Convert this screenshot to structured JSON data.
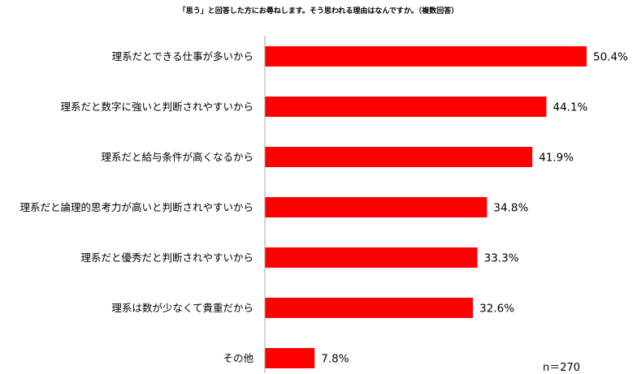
{
  "chart_data": {
    "type": "bar",
    "orientation": "horizontal",
    "title": "「思う」と回答した方にお尋ねします。そう思われる理由はなんですか。（複数回答）",
    "categories": [
      "理系だとできる仕事が多いから",
      "理系だと数字に強いと判断されやすいから",
      "理系だと給与条件が高くなるから",
      "理系だと論理的思考力が高いと判断されやすいから",
      "理系だと優秀だと判断されやすいから",
      "理系は数が少なくて貴重だから",
      "その他"
    ],
    "values": [
      50.4,
      44.1,
      41.9,
      34.8,
      33.3,
      32.6,
      7.8
    ],
    "value_labels": [
      "50.4%",
      "44.1%",
      "41.9%",
      "34.8%",
      "33.3%",
      "32.6%",
      "7.8%"
    ],
    "unit": "%",
    "xlim": [
      0,
      50.4
    ],
    "bar_color": "#ff0000",
    "grid": false,
    "legend": "none",
    "note": "n＝270"
  }
}
